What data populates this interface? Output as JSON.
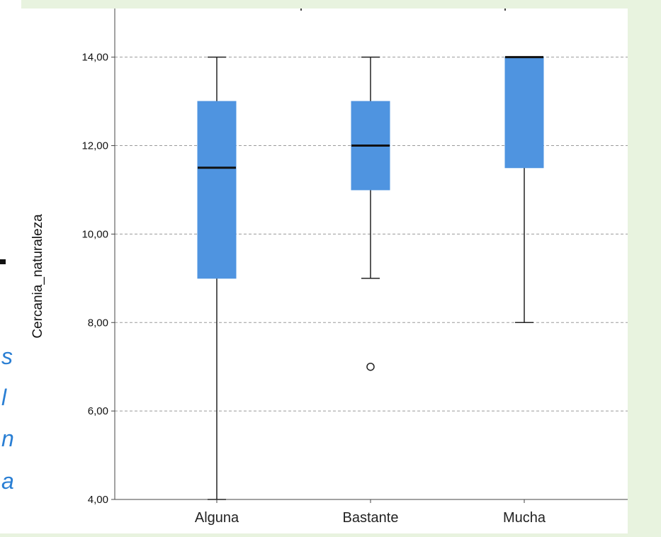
{
  "side_text": {
    "line1": "s",
    "line2": "l",
    "line3": "n",
    "line4": "a",
    "color": "#2a7fd4"
  },
  "chart_data": {
    "type": "boxplot",
    "title": "",
    "xlabel": "",
    "ylabel": "Cercania_naturaleza",
    "ylim": [
      4,
      15.1
    ],
    "yticks": [
      4,
      6,
      8,
      10,
      12,
      14
    ],
    "ytick_labels": [
      "4,00",
      "6,00",
      "8,00",
      "10,00",
      "12,00",
      "14,00"
    ],
    "grid": "horizontal dashed",
    "box_color": "#4f94e0",
    "categories": [
      "Alguna",
      "Bastante",
      "Mucha"
    ],
    "boxes": [
      {
        "category": "Alguna",
        "whisker_low": 4,
        "q1": 9,
        "median": 11.5,
        "q3": 13,
        "whisker_high": 14,
        "outliers": []
      },
      {
        "category": "Bastante",
        "whisker_low": 9,
        "q1": 11,
        "median": 12,
        "q3": 13,
        "whisker_high": 14,
        "outliers": [
          7
        ]
      },
      {
        "category": "Mucha",
        "whisker_low": 8,
        "q1": 11.5,
        "median": 14,
        "q3": 14,
        "whisker_high": 14,
        "outliers": []
      }
    ]
  }
}
